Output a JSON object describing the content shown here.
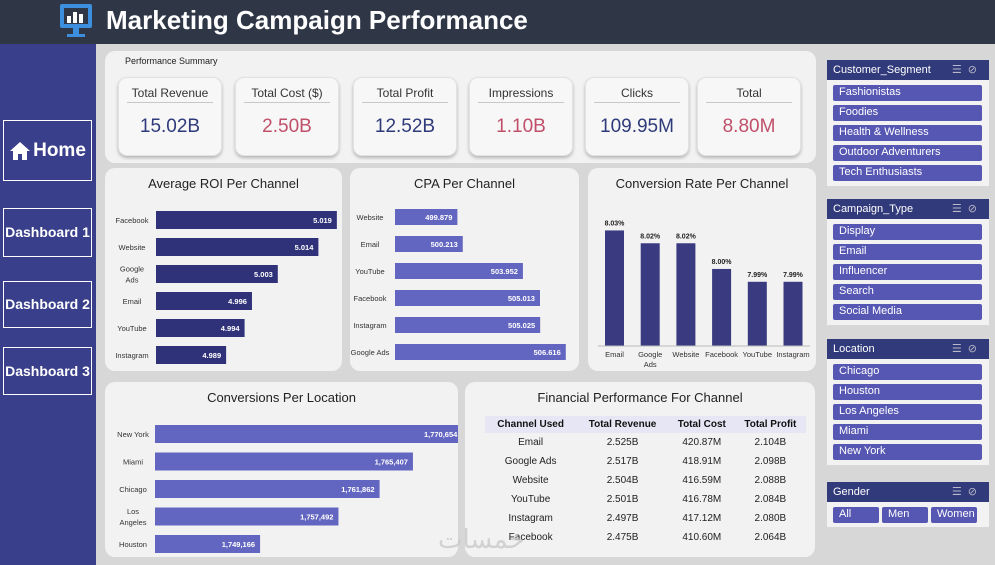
{
  "header": {
    "title": "Marketing Campaign Performance",
    "logo_icon": "dashboard-monitor-icon"
  },
  "nav": {
    "home": "Home",
    "dashboard1": "Dashboard 1",
    "dashboard2": "Dashboard 2",
    "dashboard3": "Dashboard 3"
  },
  "summary": {
    "label": "Performance Summary",
    "kpis": [
      {
        "label": "Total Revenue",
        "value": "15.02B",
        "color": "#2f3a7a"
      },
      {
        "label": "Total Cost ($)",
        "value": "2.50B",
        "color": "#c0506a"
      },
      {
        "label": "Total Profit",
        "value": "12.52B",
        "color": "#2f3a7a"
      },
      {
        "label": "Impressions",
        "value": "1.10B",
        "color": "#c0506a"
      },
      {
        "label": "Clicks",
        "value": "109.95M",
        "color": "#2f3a7a"
      },
      {
        "label": "Total",
        "value": "8.80M",
        "color": "#c0506a"
      }
    ]
  },
  "chart_data": [
    {
      "type": "bar",
      "orientation": "horizontal",
      "title": "Average ROI Per Channel",
      "categories": [
        "Facebook",
        "Website",
        "Google Ads",
        "Email",
        "YouTube",
        "Instagram"
      ],
      "values": [
        5.019,
        5.014,
        5.003,
        4.996,
        4.994,
        4.989
      ],
      "labels": [
        "5.019",
        "5.014",
        "5.003",
        "4.996",
        "4.994",
        "4.989"
      ],
      "color": "#2f3279",
      "xlim": [
        4.97,
        5.025
      ]
    },
    {
      "type": "bar",
      "orientation": "horizontal",
      "title": "CPA Per Channel",
      "categories": [
        "Website",
        "Email",
        "YouTube",
        "Facebook",
        "Instagram",
        "Google Ads"
      ],
      "values": [
        499.879,
        500.213,
        503.952,
        505.013,
        505.025,
        506.616
      ],
      "labels": [
        "499.879",
        "500.213",
        "503.952",
        "505.013",
        "505.025",
        "506.616"
      ],
      "color": "#6366c0",
      "xlim": [
        496,
        507.5
      ]
    },
    {
      "type": "bar",
      "orientation": "vertical",
      "title": "Conversion Rate Per Channel",
      "categories": [
        "Email",
        "Google Ads",
        "Website",
        "Facebook",
        "YouTube",
        "Instagram"
      ],
      "values": [
        8.03,
        8.02,
        8.02,
        8.0,
        7.99,
        7.99
      ],
      "labels": [
        "8.03%",
        "8.02%",
        "8.02%",
        "8.00%",
        "7.99%",
        "7.99%"
      ],
      "color": "#3a3a80",
      "ylim": [
        7.94,
        8.035
      ]
    },
    {
      "type": "bar",
      "orientation": "horizontal",
      "title": "Conversions Per Location",
      "categories": [
        "New York",
        "Miami",
        "Chicago",
        "Los Angeles",
        "Houston"
      ],
      "values": [
        1770654,
        1765407,
        1761862,
        1757492,
        1749166
      ],
      "labels": [
        "1,770,654",
        "1,765,407",
        "1,761,862",
        "1,757,492",
        "1,749,166"
      ],
      "color": "#6366c0",
      "xlim": [
        1738000,
        1772000
      ]
    },
    {
      "type": "table",
      "title": "Financial Performance For Channel",
      "columns": [
        "Channel Used",
        "Total Revenue",
        "Total Cost",
        "Total Profit"
      ],
      "rows": [
        [
          "Email",
          "2.525B",
          "420.87M",
          "2.104B"
        ],
        [
          "Google Ads",
          "2.517B",
          "418.91M",
          "2.098B"
        ],
        [
          "Website",
          "2.504B",
          "416.59M",
          "2.088B"
        ],
        [
          "YouTube",
          "2.501B",
          "416.78M",
          "2.084B"
        ],
        [
          "Instagram",
          "2.497B",
          "417.12M",
          "2.080B"
        ],
        [
          "Facebook",
          "2.475B",
          "410.60M",
          "2.064B"
        ]
      ]
    }
  ],
  "slicers": {
    "customer_segment": {
      "title": "Customer_Segment",
      "items": [
        "Fashionistas",
        "Foodies",
        "Health & Wellness",
        "Outdoor Adventurers",
        "Tech Enthusiasts"
      ]
    },
    "campaign_type": {
      "title": "Campaign_Type",
      "items": [
        "Display",
        "Email",
        "Influencer",
        "Search",
        "Social Media"
      ]
    },
    "location": {
      "title": "Location",
      "items": [
        "Chicago",
        "Houston",
        "Los Angeles",
        "Miami",
        "New York"
      ]
    },
    "gender": {
      "title": "Gender",
      "items": [
        "All",
        "Men",
        "Women"
      ]
    },
    "icons": {
      "multiselect": "multi-select-icon",
      "clear": "clear-filter-icon"
    }
  },
  "watermark": "خمسات"
}
